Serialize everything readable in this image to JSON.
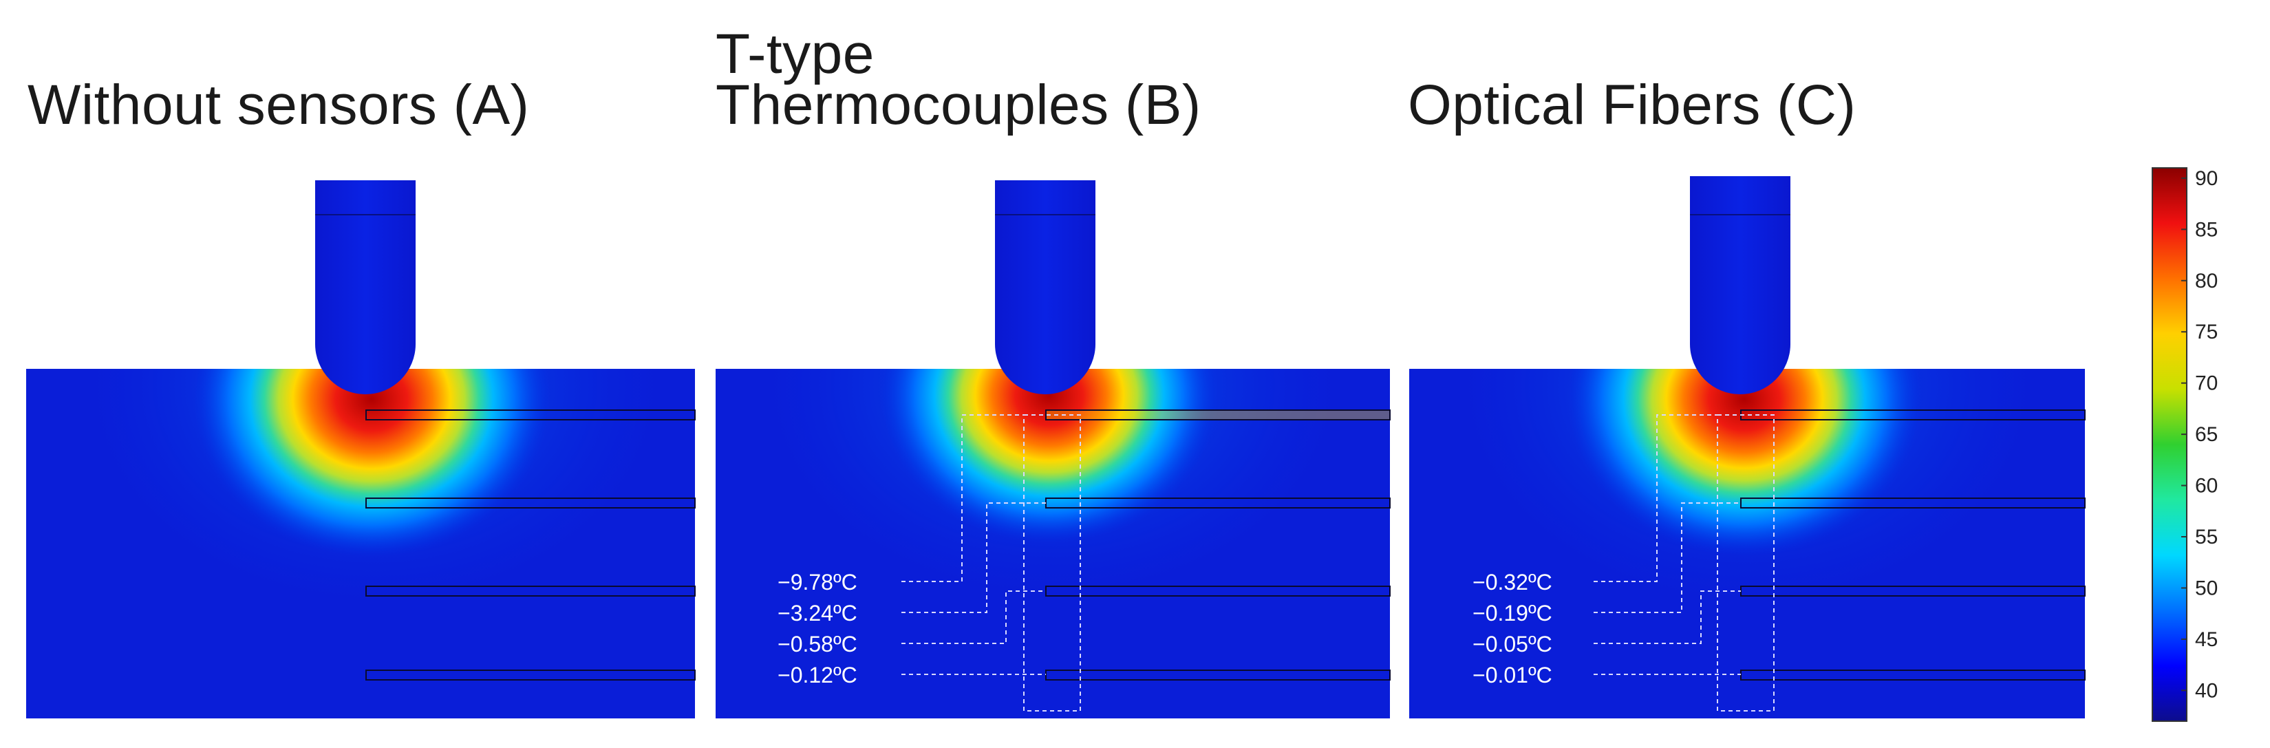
{
  "panels": [
    {
      "title_line1": "",
      "title_line2": "Without sensors (A)",
      "annotations": []
    },
    {
      "title_line1": "T-type",
      "title_line2": "Thermocouples (B)",
      "annotations": [
        "−9.78ºC",
        "−3.24ºC",
        "−0.58ºC",
        "−0.12ºC"
      ]
    },
    {
      "title_line1": "",
      "title_line2": "Optical Fibers (C)",
      "annotations": [
        "−0.32ºC",
        "−0.19ºC",
        "−0.05ºC",
        "−0.01ºC"
      ]
    }
  ],
  "colorbar": {
    "ticks": [
      "90",
      "85",
      "80",
      "75",
      "70",
      "65",
      "60",
      "55",
      "50",
      "45",
      "40"
    ],
    "min": 37,
    "max": 91,
    "colors": [
      "#0d0d8c",
      "#0000ff",
      "#0070ff",
      "#00d8ff",
      "#20e8a0",
      "#30d030",
      "#c8e000",
      "#ffd000",
      "#ff7000",
      "#f01010",
      "#8b0000"
    ]
  }
}
